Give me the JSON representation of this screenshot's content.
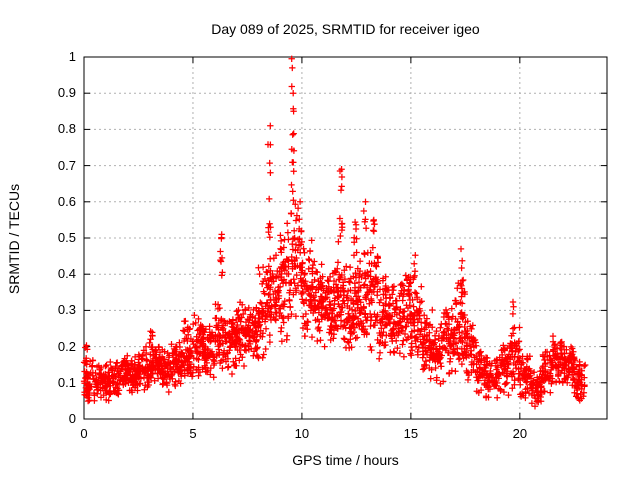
{
  "chart_data": {
    "type": "scatter",
    "title": "Day 089 of 2025, SRMTID for receiver igeo",
    "xlabel": "GPS time / hours",
    "ylabel": "SRMTID / TECUs",
    "xlim": [
      0,
      24
    ],
    "ylim": [
      0,
      1
    ],
    "xticks": [
      0,
      5,
      10,
      15,
      20
    ],
    "xtick_labels": [
      "0",
      "5",
      "10",
      "15",
      "20"
    ],
    "yticks": [
      0,
      0.1,
      0.2,
      0.3,
      0.4,
      0.5,
      0.6,
      0.7,
      0.8,
      0.9,
      1
    ],
    "ytick_labels": [
      "0",
      "0.1",
      "0.2",
      "0.3",
      "0.4",
      "0.5",
      "0.6",
      "0.7",
      "0.8",
      "0.9",
      "1"
    ],
    "grid": true,
    "legend": "none",
    "marker": "plus",
    "colors": {
      "marker": "#ff0000",
      "grid": "#b0b0b0",
      "frame": "#000000",
      "background": "#ffffff"
    },
    "series_name": "SRMTID",
    "seed": 987654321,
    "density_bands": [
      [
        0.0,
        0.5,
        0.04,
        0.18,
        55
      ],
      [
        0.5,
        1.0,
        0.05,
        0.16,
        55
      ],
      [
        1.0,
        1.5,
        0.05,
        0.17,
        55
      ],
      [
        1.5,
        2.0,
        0.06,
        0.18,
        55
      ],
      [
        2.0,
        2.5,
        0.06,
        0.19,
        55
      ],
      [
        2.5,
        3.0,
        0.07,
        0.21,
        55
      ],
      [
        3.0,
        3.5,
        0.08,
        0.22,
        55
      ],
      [
        3.5,
        4.0,
        0.07,
        0.2,
        55
      ],
      [
        4.0,
        4.5,
        0.08,
        0.23,
        55
      ],
      [
        4.5,
        5.0,
        0.08,
        0.26,
        55
      ],
      [
        5.0,
        5.5,
        0.1,
        0.3,
        55
      ],
      [
        5.5,
        6.0,
        0.1,
        0.26,
        55
      ],
      [
        6.0,
        6.5,
        0.12,
        0.35,
        55
      ],
      [
        6.5,
        7.0,
        0.12,
        0.3,
        55
      ],
      [
        7.0,
        7.5,
        0.13,
        0.33,
        55
      ],
      [
        7.5,
        8.0,
        0.15,
        0.33,
        55
      ],
      [
        8.0,
        8.5,
        0.15,
        0.45,
        55
      ],
      [
        8.5,
        9.0,
        0.18,
        0.48,
        55
      ],
      [
        9.0,
        9.5,
        0.2,
        0.6,
        58
      ],
      [
        9.5,
        10.0,
        0.25,
        0.62,
        60
      ],
      [
        10.0,
        10.5,
        0.22,
        0.52,
        60
      ],
      [
        10.5,
        11.0,
        0.2,
        0.46,
        60
      ],
      [
        11.0,
        11.5,
        0.18,
        0.42,
        60
      ],
      [
        11.5,
        12.0,
        0.18,
        0.5,
        60
      ],
      [
        12.0,
        12.5,
        0.15,
        0.45,
        60
      ],
      [
        12.5,
        13.0,
        0.18,
        0.48,
        60
      ],
      [
        13.0,
        13.5,
        0.18,
        0.5,
        55
      ],
      [
        13.5,
        14.0,
        0.15,
        0.42,
        55
      ],
      [
        14.0,
        14.5,
        0.15,
        0.38,
        55
      ],
      [
        14.5,
        15.0,
        0.15,
        0.42,
        55
      ],
      [
        15.0,
        15.5,
        0.15,
        0.4,
        55
      ],
      [
        15.5,
        16.0,
        0.1,
        0.32,
        55
      ],
      [
        16.0,
        16.5,
        0.09,
        0.28,
        55
      ],
      [
        16.5,
        17.0,
        0.1,
        0.33,
        55
      ],
      [
        17.0,
        17.5,
        0.12,
        0.4,
        55
      ],
      [
        17.5,
        18.0,
        0.1,
        0.3,
        50
      ],
      [
        18.0,
        18.5,
        0.05,
        0.2,
        50
      ],
      [
        18.5,
        19.0,
        0.05,
        0.18,
        50
      ],
      [
        19.0,
        19.5,
        0.06,
        0.22,
        50
      ],
      [
        19.5,
        20.0,
        0.08,
        0.28,
        50
      ],
      [
        20.0,
        20.5,
        0.05,
        0.18,
        50
      ],
      [
        20.5,
        21.0,
        0.03,
        0.14,
        50
      ],
      [
        21.0,
        21.5,
        0.06,
        0.2,
        50
      ],
      [
        21.5,
        22.0,
        0.08,
        0.24,
        55
      ],
      [
        22.0,
        22.5,
        0.08,
        0.22,
        55
      ],
      [
        22.5,
        23.0,
        0.04,
        0.17,
        50
      ]
    ],
    "spike_columns": [
      [
        0.1,
        0.15,
        0.22,
        5
      ],
      [
        3.1,
        0.2,
        0.25,
        5
      ],
      [
        4.6,
        0.22,
        0.28,
        5
      ],
      [
        6.3,
        0.38,
        0.52,
        8
      ],
      [
        8.5,
        0.5,
        0.78,
        10
      ],
      [
        9.58,
        0.55,
        0.93,
        12
      ],
      [
        11.8,
        0.5,
        0.69,
        10
      ],
      [
        12.45,
        0.44,
        0.56,
        8
      ],
      [
        12.9,
        0.45,
        0.6,
        6
      ],
      [
        13.3,
        0.45,
        0.55,
        6
      ],
      [
        14.9,
        0.33,
        0.44,
        6
      ],
      [
        15.2,
        0.36,
        0.47,
        5
      ],
      [
        17.35,
        0.32,
        0.47,
        8
      ],
      [
        19.7,
        0.24,
        0.33,
        5
      ]
    ],
    "peak_points": [
      [
        8.55,
        0.81
      ],
      [
        9.53,
        0.995
      ],
      [
        9.56,
        0.97
      ],
      [
        9.6,
        0.9
      ],
      [
        9.62,
        0.85
      ],
      [
        11.82,
        0.69
      ],
      [
        6.32,
        0.51
      ],
      [
        12.92,
        0.6
      ],
      [
        13.3,
        0.55
      ],
      [
        17.3,
        0.47
      ]
    ]
  }
}
